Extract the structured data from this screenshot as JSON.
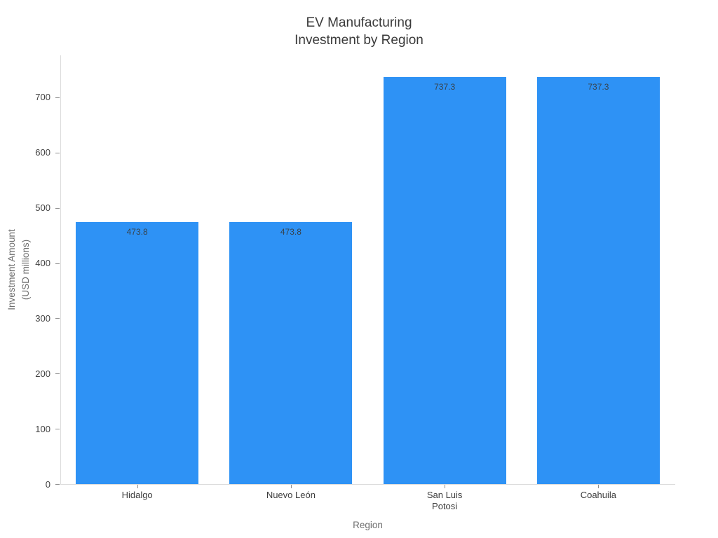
{
  "title": "EV Manufacturing\nInvestment by Region",
  "chart_data": {
    "type": "bar",
    "title": "EV Manufacturing Investment by Region",
    "categories": [
      "Hidalgo",
      "Nuevo León",
      "San Luis Potosi",
      "Coahuila"
    ],
    "tick_labels": [
      "Hidalgo",
      "Nuevo León",
      "San Luis\nPotosi",
      "Coahuila"
    ],
    "values": [
      473.8,
      473.8,
      737.3,
      737.3
    ],
    "value_labels": [
      "473.8",
      "473.8",
      "737.3",
      "737.3"
    ],
    "xlabel": "Region",
    "ylabel": "Investment Amount\n(USD millions)",
    "yticks": [
      0,
      100,
      200,
      300,
      400,
      500,
      600,
      700
    ],
    "ylim": [
      0,
      776
    ],
    "grid": false,
    "legend_position": "none",
    "colors": {
      "bar": "#2E92F5",
      "value_label": "#37434d",
      "axis_line": "#dcdcdc",
      "tick_mark": "#8f8f8f",
      "tick_text": "#3d3d3d",
      "axis_title_text": "#6e6e6e",
      "title_text": "#3a3a3a",
      "background": "#ffffff"
    }
  }
}
